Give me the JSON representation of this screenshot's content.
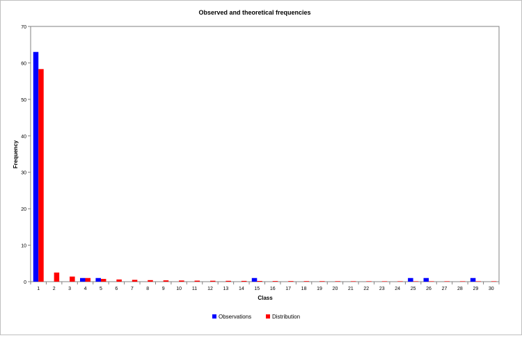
{
  "chart_data": {
    "type": "bar",
    "title": "Observed and theoretical frequencies",
    "xlabel": "Class",
    "ylabel": "Frequency",
    "ylim": [
      0,
      70
    ],
    "yticks": [
      0,
      10,
      20,
      30,
      40,
      50,
      60,
      70
    ],
    "grid": false,
    "legend_position": "bottom",
    "categories": [
      "1",
      "2",
      "3",
      "4",
      "5",
      "6",
      "7",
      "8",
      "9",
      "10",
      "11",
      "12",
      "13",
      "14",
      "15",
      "16",
      "17",
      "18",
      "19",
      "20",
      "21",
      "22",
      "23",
      "24",
      "25",
      "26",
      "27",
      "28",
      "29",
      "30"
    ],
    "series": [
      {
        "name": "Observations",
        "color": "#0000ff",
        "values": [
          63,
          0,
          0,
          1,
          1,
          0,
          0,
          0,
          0,
          0,
          0,
          0,
          0,
          0,
          1,
          0,
          0,
          0,
          0,
          0,
          0,
          0,
          0,
          0,
          1,
          1,
          0,
          0,
          1,
          0
        ]
      },
      {
        "name": "Distribution",
        "color": "#ff0000",
        "values": [
          58.3,
          2.5,
          1.4,
          1.0,
          0.75,
          0.6,
          0.5,
          0.42,
          0.36,
          0.32,
          0.28,
          0.25,
          0.23,
          0.21,
          0.19,
          0.17,
          0.16,
          0.15,
          0.14,
          0.13,
          0.12,
          0.11,
          0.1,
          0.1,
          0.09,
          0.09,
          0.08,
          0.08,
          0.07,
          0.07
        ]
      }
    ]
  }
}
